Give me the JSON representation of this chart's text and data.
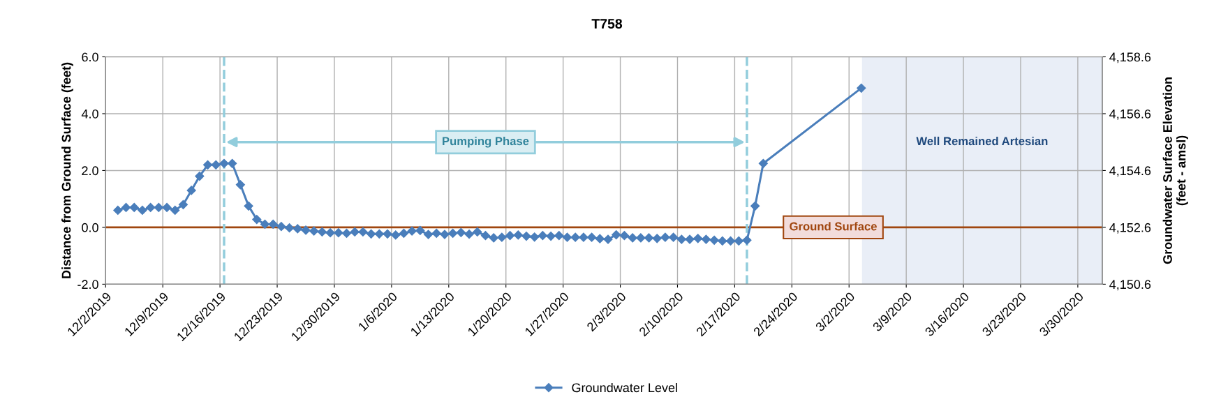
{
  "chart_data": {
    "type": "line",
    "title": "T758",
    "ylabel": "Distance from Ground Surface (feet)",
    "y2label": "Groundwater Surface Elevation\n(feet - amsl)",
    "series": [
      {
        "name": "Groundwater Level",
        "color": "#4a7ebb",
        "marker": "diamond",
        "line_style": "solid",
        "x": [
          "2019-12-03T12:00",
          "2019-12-04T12:00",
          "2019-12-05T12:00",
          "2019-12-06T12:00",
          "2019-12-07T12:00",
          "2019-12-08T12:00",
          "2019-12-09T12:00",
          "2019-12-10T12:00",
          "2019-12-11T12:00",
          "2019-12-12T12:00",
          "2019-12-13T12:00",
          "2019-12-14T12:00",
          "2019-12-15T12:00",
          "2019-12-16T12:00",
          "2019-12-17T12:00",
          "2019-12-18T12:00",
          "2019-12-19T12:00",
          "2019-12-20T12:00",
          "2019-12-21T12:00",
          "2019-12-22T12:00",
          "2019-12-23T12:00",
          "2019-12-24T12:00",
          "2019-12-25T12:00",
          "2019-12-26T12:00",
          "2019-12-27T12:00",
          "2019-12-28T12:00",
          "2019-12-29T12:00",
          "2019-12-30T12:00",
          "2019-12-31T12:00",
          "2020-01-01T12:00",
          "2020-01-02T12:00",
          "2020-01-03T12:00",
          "2020-01-04T12:00",
          "2020-01-05T12:00",
          "2020-01-06T12:00",
          "2020-01-07T12:00",
          "2020-01-08T12:00",
          "2020-01-09T12:00",
          "2020-01-10T12:00",
          "2020-01-11T12:00",
          "2020-01-12T12:00",
          "2020-01-13T12:00",
          "2020-01-14T12:00",
          "2020-01-15T12:00",
          "2020-01-16T12:00",
          "2020-01-17T12:00",
          "2020-01-18T12:00",
          "2020-01-19T12:00",
          "2020-01-20T12:00",
          "2020-01-21T12:00",
          "2020-01-22T12:00",
          "2020-01-23T12:00",
          "2020-01-24T12:00",
          "2020-01-25T12:00",
          "2020-01-26T12:00",
          "2020-01-27T12:00",
          "2020-01-28T12:00",
          "2020-01-29T12:00",
          "2020-01-30T12:00",
          "2020-01-31T12:00",
          "2020-02-01T12:00",
          "2020-02-02T12:00",
          "2020-02-03T12:00",
          "2020-02-04T12:00",
          "2020-02-05T12:00",
          "2020-02-06T12:00",
          "2020-02-07T12:00",
          "2020-02-08T12:00",
          "2020-02-09T12:00",
          "2020-02-10T12:00",
          "2020-02-11T12:00",
          "2020-02-12T12:00",
          "2020-02-13T12:00",
          "2020-02-14T12:00",
          "2020-02-15T12:00",
          "2020-02-16T12:00",
          "2020-02-17T12:00",
          "2020-02-18T12:00",
          "2020-02-19T12:00",
          "2020-02-20T12:00",
          "2020-03-03T12:00"
        ],
        "values": [
          0.6,
          0.7,
          0.7,
          0.6,
          0.7,
          0.7,
          0.7,
          0.6,
          0.8,
          1.3,
          1.8,
          2.2,
          2.2,
          2.25,
          2.25,
          1.5,
          0.75,
          0.28,
          0.11,
          0.11,
          0.03,
          -0.02,
          -0.05,
          -0.1,
          -0.13,
          -0.16,
          -0.19,
          -0.19,
          -0.21,
          -0.16,
          -0.16,
          -0.23,
          -0.23,
          -0.23,
          -0.27,
          -0.21,
          -0.13,
          -0.11,
          -0.25,
          -0.21,
          -0.25,
          -0.21,
          -0.18,
          -0.24,
          -0.16,
          -0.29,
          -0.37,
          -0.35,
          -0.29,
          -0.27,
          -0.31,
          -0.34,
          -0.29,
          -0.31,
          -0.29,
          -0.35,
          -0.35,
          -0.35,
          -0.35,
          -0.4,
          -0.42,
          -0.26,
          -0.29,
          -0.37,
          -0.37,
          -0.37,
          -0.39,
          -0.35,
          -0.35,
          -0.42,
          -0.42,
          -0.39,
          -0.42,
          -0.45,
          -0.48,
          -0.48,
          -0.48,
          -0.45,
          0.75,
          2.25,
          4.9
        ]
      }
    ],
    "xlim": [
      "2019-12-02",
      "2020-04-02"
    ],
    "xticks": [
      {
        "value": "2019-12-02",
        "label": "12/2/2019"
      },
      {
        "value": "2019-12-09",
        "label": "12/9/2019"
      },
      {
        "value": "2019-12-16",
        "label": "12/16/2019"
      },
      {
        "value": "2019-12-23",
        "label": "12/23/2019"
      },
      {
        "value": "2019-12-30",
        "label": "12/30/2019"
      },
      {
        "value": "2020-01-06",
        "label": "1/6/2020"
      },
      {
        "value": "2020-01-13",
        "label": "1/13/2020"
      },
      {
        "value": "2020-01-20",
        "label": "1/20/2020"
      },
      {
        "value": "2020-01-27",
        "label": "1/27/2020"
      },
      {
        "value": "2020-02-03",
        "label": "2/3/2020"
      },
      {
        "value": "2020-02-10",
        "label": "2/10/2020"
      },
      {
        "value": "2020-02-17",
        "label": "2/17/2020"
      },
      {
        "value": "2020-02-24",
        "label": "2/24/2020"
      },
      {
        "value": "2020-03-02",
        "label": "3/2/2020"
      },
      {
        "value": "2020-03-09",
        "label": "3/9/2020"
      },
      {
        "value": "2020-03-16",
        "label": "3/16/2020"
      },
      {
        "value": "2020-03-23",
        "label": "3/23/2020"
      },
      {
        "value": "2020-03-30",
        "label": "3/30/2020"
      }
    ],
    "ylim": [
      -2,
      6
    ],
    "yticks": [
      {
        "value": -2,
        "label": "-2.0"
      },
      {
        "value": 0,
        "label": "0.0"
      },
      {
        "value": 2,
        "label": "2.0"
      },
      {
        "value": 4,
        "label": "4.0"
      },
      {
        "value": 6,
        "label": "6.0"
      }
    ],
    "y2lim": [
      4150.6,
      4158.6
    ],
    "y2ticks": [
      {
        "value": 4150.6,
        "label": "4,150.6"
      },
      {
        "value": 4152.6,
        "label": "4,152.6"
      },
      {
        "value": 4154.6,
        "label": "4,154.6"
      },
      {
        "value": 4156.6,
        "label": "4,156.6"
      },
      {
        "value": 4158.6,
        "label": "4,158.6"
      }
    ],
    "ref_lines": [
      {
        "axis": "y",
        "value": 0,
        "label": "Ground Surface",
        "color": "#a0460f",
        "line_style": "solid"
      },
      {
        "axis": "x",
        "value": "2019-12-16T12:00",
        "color": "#92cddc",
        "line_style": "dashed"
      },
      {
        "axis": "x",
        "value": "2020-02-18T12:00",
        "color": "#92cddc",
        "line_style": "dashed"
      }
    ],
    "bands": [
      {
        "axis": "x",
        "from": "2020-03-03T14:00",
        "to": "2020-04-02",
        "label": "Well Remained Artesian",
        "color": "#e9eef7"
      }
    ],
    "annotations": [
      "Pumping Phase"
    ],
    "grid": true,
    "legend": "bottom"
  }
}
